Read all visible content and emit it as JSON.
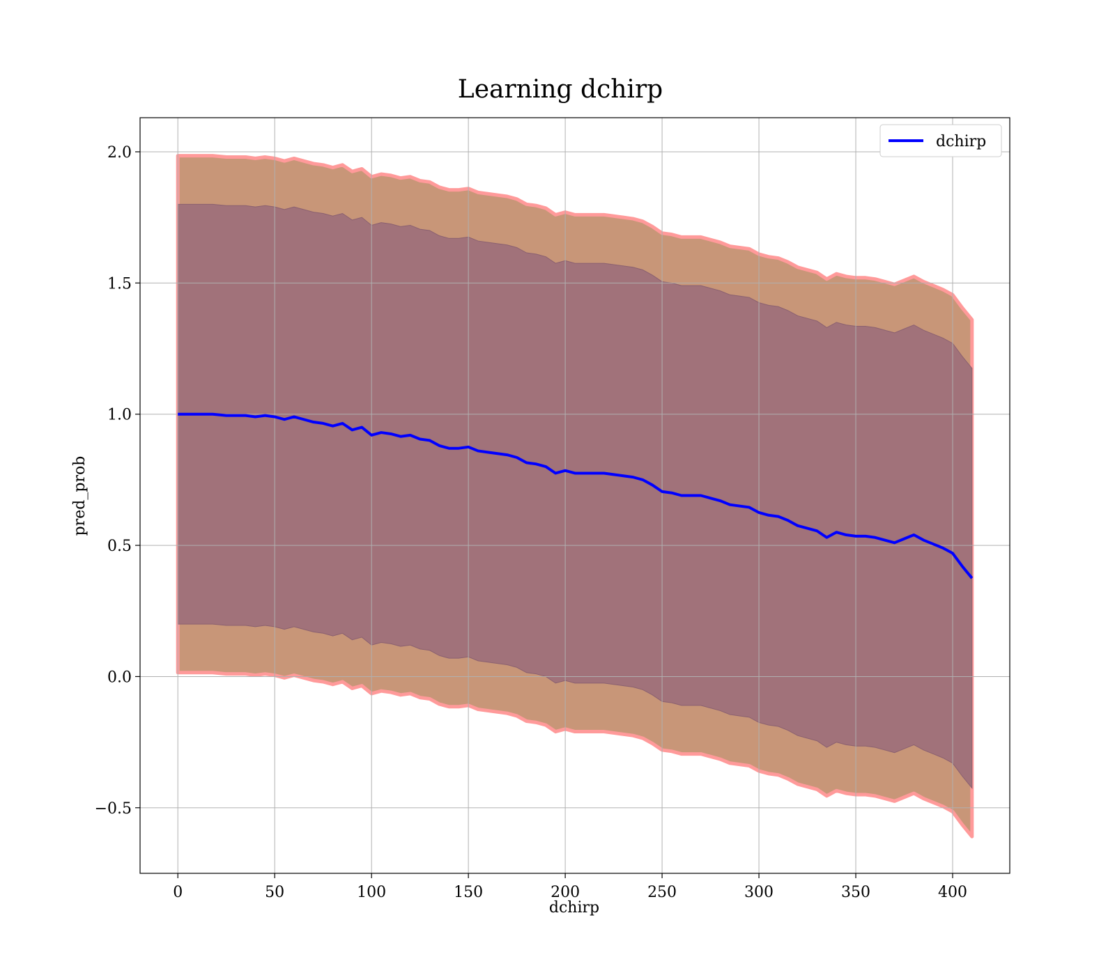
{
  "chart_data": {
    "type": "line",
    "title": "Learning dchirp",
    "xlabel": "dchirp",
    "ylabel": "pred_prob",
    "xlim": [
      -19.5,
      429.5
    ],
    "ylim": [
      -0.75,
      2.13
    ],
    "x_ticks": [
      0,
      50,
      100,
      150,
      200,
      250,
      300,
      350,
      400
    ],
    "x_tick_labels": [
      "0",
      "50",
      "100",
      "150",
      "200",
      "250",
      "300",
      "350",
      "400"
    ],
    "y_ticks": [
      -0.5,
      0.0,
      0.5,
      1.0,
      1.5,
      2.0
    ],
    "y_tick_labels": [
      "−0.5",
      "0.0",
      "0.5",
      "1.0",
      "1.5",
      "2.0"
    ],
    "grid": true,
    "legend_position": "top-right",
    "colors": {
      "line": "#0000ff",
      "inner_band": "#a1727a",
      "outer_band": "#c89678",
      "outer_edge": "#ff9a9a"
    },
    "series": [
      {
        "name": "dchirp",
        "x": [
          0,
          10,
          18,
          25,
          35,
          40,
          45,
          50,
          55,
          60,
          65,
          70,
          75,
          80,
          85,
          90,
          95,
          100,
          105,
          110,
          115,
          120,
          125,
          130,
          135,
          140,
          145,
          150,
          155,
          160,
          165,
          170,
          175,
          180,
          185,
          190,
          195,
          200,
          205,
          210,
          215,
          220,
          225,
          230,
          235,
          240,
          245,
          250,
          255,
          260,
          265,
          270,
          275,
          280,
          285,
          290,
          295,
          300,
          305,
          310,
          315,
          320,
          325,
          330,
          335,
          340,
          345,
          350,
          355,
          360,
          365,
          370,
          375,
          380,
          385,
          390,
          395,
          400,
          405,
          410
        ],
        "values": [
          1.0,
          1.0,
          1.0,
          0.995,
          0.995,
          0.99,
          0.995,
          0.99,
          0.98,
          0.99,
          0.98,
          0.97,
          0.965,
          0.955,
          0.965,
          0.94,
          0.95,
          0.92,
          0.93,
          0.925,
          0.915,
          0.92,
          0.905,
          0.9,
          0.88,
          0.87,
          0.87,
          0.875,
          0.86,
          0.855,
          0.85,
          0.845,
          0.835,
          0.815,
          0.81,
          0.8,
          0.775,
          0.785,
          0.775,
          0.775,
          0.775,
          0.775,
          0.77,
          0.765,
          0.76,
          0.75,
          0.73,
          0.705,
          0.7,
          0.69,
          0.69,
          0.69,
          0.68,
          0.67,
          0.655,
          0.65,
          0.645,
          0.625,
          0.615,
          0.61,
          0.595,
          0.575,
          0.565,
          0.555,
          0.53,
          0.55,
          0.54,
          0.535,
          0.535,
          0.53,
          0.52,
          0.51,
          0.525,
          0.54,
          0.52,
          0.505,
          0.49,
          0.47,
          0.42,
          0.375
        ]
      }
    ],
    "bands": [
      {
        "label": "outer",
        "offset_upper": 0.985,
        "offset_lower": 0.985
      },
      {
        "label": "inner",
        "offset_upper": 0.8,
        "offset_lower": 0.8
      }
    ]
  }
}
